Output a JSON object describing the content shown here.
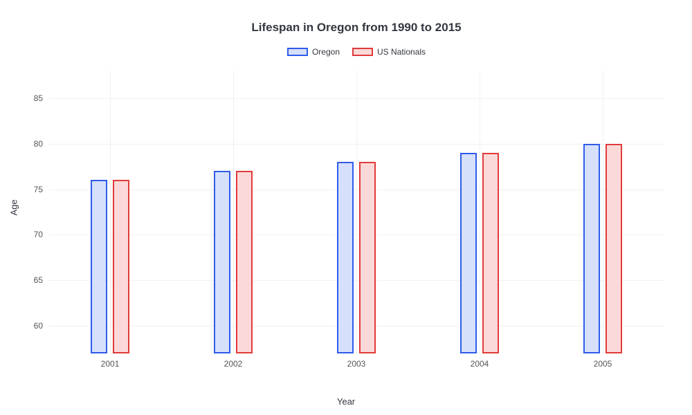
{
  "chart": {
    "type": "bar",
    "title": "Lifespan in Oregon from 1990 to 2015",
    "title_fontsize": 17,
    "title_color": "#333740",
    "xlabel": "Year",
    "ylabel": "Age",
    "label_fontsize": 13,
    "tick_fontsize": 12,
    "tick_color": "#555555",
    "background_color": "#ffffff",
    "grid_color": "#f0f0f0",
    "ylim": [
      57,
      88
    ],
    "yticks": [
      60,
      65,
      70,
      75,
      80,
      85
    ],
    "categories": [
      "2001",
      "2002",
      "2003",
      "2004",
      "2005"
    ],
    "series": [
      {
        "name": "Oregon",
        "values": [
          76,
          77,
          78,
          79,
          80
        ],
        "border_color": "#2f5bea",
        "fill_color": "#d6e0fb"
      },
      {
        "name": "US Nationals",
        "values": [
          76,
          77,
          78,
          79,
          80
        ],
        "border_color": "#e03a3a",
        "fill_color": "#fcd9d9"
      }
    ],
    "bar_width_ratio": 0.14,
    "bar_gap_ratio": 0.04,
    "legend_position": "top-center",
    "legend_swatch_width": 30,
    "legend_swatch_height": 12
  }
}
